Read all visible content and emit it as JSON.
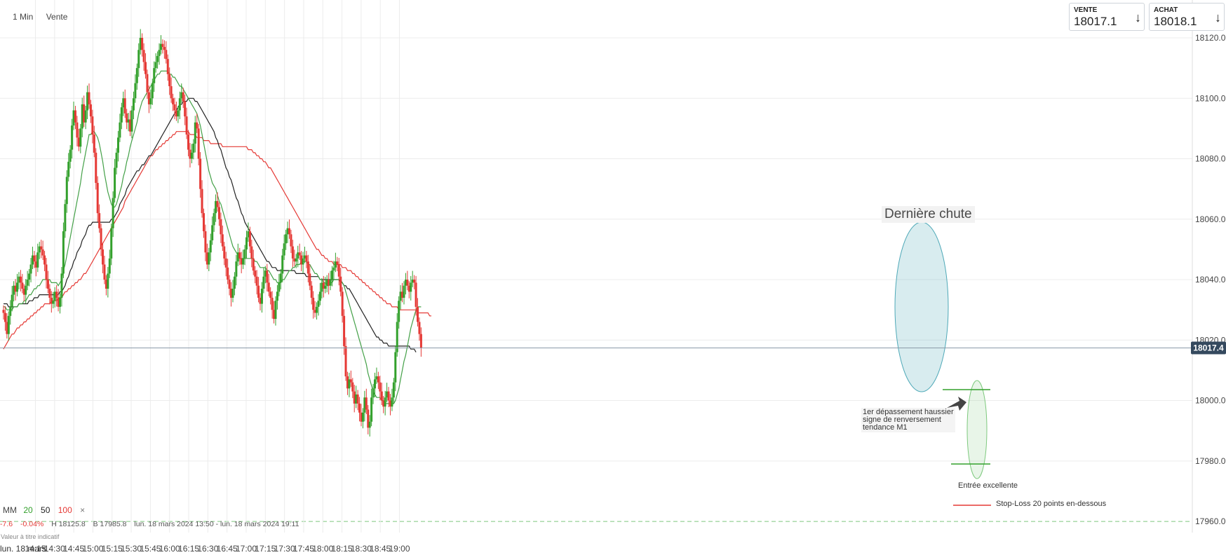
{
  "toolbar": {
    "interval": "1 Min",
    "mode": "Vente"
  },
  "quotes": {
    "sell": {
      "label": "VENTE",
      "value": "18017.1",
      "arrow": "↓"
    },
    "buy": {
      "label": "ACHAT",
      "value": "18018.1",
      "arrow": "↓"
    }
  },
  "legend": {
    "title": "MM",
    "periods": [
      "20",
      "50",
      "100"
    ],
    "close": "×"
  },
  "infobar": {
    "change": "-7.6",
    "change_pct": "-0.04%",
    "high": "H 18125.8",
    "low": "B 17985.8",
    "range": "lun. 18 mars 2024 13:50 - lun. 18 mars 2024 19:11",
    "indicative": "Valeur à titre indicatif",
    "date": "lun. 18 mars"
  },
  "annotations": {
    "title": "Dernière chute",
    "note": [
      "1er dépassement haussier",
      "signe de renversement",
      "tendance M1"
    ],
    "entry": "Entrée excellente",
    "stop_loss": "Stop-Loss 20 points en-dessous"
  },
  "colors": {
    "up": "#33a02c",
    "down": "#e53935",
    "ma20": "#43a047",
    "ma50": "#222222",
    "ma100": "#e53935",
    "last_price": "#34495e"
  },
  "chart_data": {
    "type": "candlestick",
    "y_ticks": [
      "18120.0",
      "18100.0",
      "18080.0",
      "18060.0",
      "18040.0",
      "18020.0",
      "18000.0",
      "17980.0",
      "17960.0"
    ],
    "x_ticks": [
      "14:15",
      "14:30",
      "14:45",
      "15:00",
      "15:15",
      "15:30",
      "15:45",
      "16:00",
      "16:15",
      "16:30",
      "16:45",
      "17:00",
      "17:15",
      "17:30",
      "17:45",
      "18:00",
      "18:15",
      "18:30",
      "18:45",
      "19:00"
    ],
    "ylim": [
      17955,
      18125
    ],
    "x_range": [
      "13:50",
      "19:11"
    ],
    "last_price": "18017.4",
    "stop_level": 17979,
    "close": [
      18029,
      18026,
      18022,
      18028,
      18031,
      18035,
      18038,
      18036,
      18039,
      18041,
      18039,
      18037,
      18035,
      18038,
      18040,
      18042,
      18045,
      18048,
      18046,
      18044,
      18049,
      18051,
      18050,
      18048,
      18045,
      18040,
      18037,
      18034,
      18032,
      18033,
      18036,
      18034,
      18031,
      18034,
      18042,
      18056,
      18065,
      18074,
      18079,
      18083,
      18091,
      18096,
      18092,
      18087,
      18084,
      18090,
      18098,
      18092,
      18096,
      18102,
      18098,
      18094,
      18088,
      18082,
      18072,
      18062,
      18057,
      18050,
      18045,
      18040,
      18037,
      18042,
      18047,
      18057,
      18067,
      18077,
      18082,
      18087,
      18092,
      18097,
      18100,
      18095,
      18092,
      18093,
      18089,
      18096,
      18100,
      18105,
      18110,
      18116,
      18120,
      18116,
      18112,
      18108,
      18102,
      18098,
      18100,
      18105,
      18110,
      18112,
      18114,
      18116,
      18118,
      18117,
      18116,
      18113,
      18108,
      18104,
      18100,
      18098,
      18096,
      18094,
      18096,
      18100,
      18102,
      18099,
      18094,
      18088,
      18083,
      18080,
      18082,
      18085,
      18092,
      18090,
      18080,
      18070,
      18062,
      18056,
      18049,
      18045,
      18049,
      18053,
      18058,
      18062,
      18066,
      18064,
      18060,
      18055,
      18051,
      18047,
      18044,
      18040,
      18037,
      18034,
      18037,
      18041,
      18046,
      18049,
      18047,
      18045,
      18047,
      18050,
      18054,
      18056,
      18051,
      18047,
      18043,
      18041,
      18038,
      18034,
      18032,
      18037,
      18041,
      18043,
      18039,
      18036,
      18034,
      18030,
      18027,
      18033,
      18036,
      18039,
      18042,
      18048,
      18052,
      18055,
      18057,
      18055,
      18051,
      18047,
      18046,
      18047,
      18049,
      18048,
      18045,
      18047,
      18048,
      18046,
      18042,
      18038,
      18034,
      18030,
      18029,
      18031,
      18033,
      18036,
      18039,
      18037,
      18038,
      18040,
      18038,
      18040,
      18043,
      18044,
      18046,
      18045,
      18041,
      18036,
      18028,
      18018,
      18008,
      18004,
      18007,
      18006,
      18003,
      17999,
      18002,
      17999,
      17996,
      17993,
      17996,
      18001,
      17997,
      17991,
      17993,
      18001,
      18004,
      18007,
      18008,
      18006,
      18003,
      18000,
      17998,
      18001,
      18003,
      18000,
      17998,
      18001,
      18006,
      18016,
      18026,
      18033,
      18036,
      18034,
      18038,
      18040,
      18038,
      18036,
      18039,
      18040,
      18039,
      18031,
      18026,
      18022,
      18017.4
    ],
    "ma20": [
      18031,
      18031,
      18030,
      18030,
      18030,
      18030,
      18031,
      18031,
      18031,
      18032,
      18032,
      18032,
      18033,
      18033,
      18034,
      18035,
      18035,
      18036,
      18037,
      18037,
      18038,
      18038,
      18039,
      18040,
      18040,
      18040,
      18040,
      18040,
      18039,
      18039,
      18039,
      18039,
      18038,
      18039,
      18040,
      18043,
      18045,
      18048,
      18051,
      18054,
      18057,
      18060,
      18063,
      18066,
      18069,
      18072,
      18076,
      18079,
      18082,
      18085,
      18088,
      18088,
      18089,
      18089,
      18088,
      18087,
      18085,
      18082,
      18079,
      18075,
      18072,
      18069,
      18067,
      18065,
      18064,
      18064,
      18065,
      18067,
      18069,
      18071,
      18074,
      18076,
      18079,
      18081,
      18084,
      18086,
      18088,
      18090,
      18092,
      18095,
      18097,
      18099,
      18100,
      18101,
      18102,
      18103,
      18104,
      18105,
      18106,
      18107,
      18108,
      18108,
      18109,
      18109,
      18109,
      18109,
      18109,
      18108,
      18108,
      18107,
      18107,
      18106,
      18105,
      18104,
      18104,
      18103,
      18102,
      18101,
      18100,
      18099,
      18098,
      18097,
      18096,
      18095,
      18093,
      18091,
      18088,
      18085,
      18082,
      18079,
      18076,
      18074,
      18072,
      18071,
      18070,
      18068,
      18066,
      18065,
      18063,
      18061,
      18059,
      18057,
      18055,
      18053,
      18051,
      18050,
      18049,
      18048,
      18047,
      18047,
      18047,
      18047,
      18047,
      18047,
      18047,
      18047,
      18047,
      18046,
      18046,
      18045,
      18044,
      18044,
      18044,
      18044,
      18043,
      18043,
      18042,
      18041,
      18040,
      18040,
      18039,
      18039,
      18039,
      18040,
      18040,
      18041,
      18042,
      18043,
      18043,
      18044,
      18044,
      18045,
      18045,
      18045,
      18046,
      18046,
      18046,
      18046,
      18045,
      18045,
      18044,
      18043,
      18042,
      18042,
      18041,
      18040,
      18040,
      18039,
      18039,
      18038,
      18038,
      18039,
      18039,
      18040,
      18040,
      18040,
      18040,
      18040,
      18039,
      18038,
      18036,
      18034,
      18032,
      18030,
      18028,
      18026,
      18024,
      18022,
      18020,
      18018,
      18016,
      18014,
      18012,
      18009,
      18007,
      18005,
      18003,
      18002,
      18001,
      18001,
      18001,
      18000,
      18000,
      17999,
      17999,
      17999,
      17999,
      17999,
      17999,
      18000,
      18002,
      18004,
      18007,
      18010,
      18013,
      18015,
      18018,
      18021,
      18024,
      18026,
      18028,
      18030,
      18031,
      18031,
      18031
    ],
    "ma50": [
      18032,
      18032,
      18032,
      18031,
      18031,
      18031,
      18031,
      18031,
      18031,
      18032,
      18032,
      18032,
      18032,
      18032,
      18032,
      18033,
      18033,
      18033,
      18034,
      18034,
      18034,
      18035,
      18035,
      18035,
      18035,
      18035,
      18035,
      18035,
      18035,
      18035,
      18035,
      18035,
      18035,
      18036,
      18036,
      18037,
      18038,
      18040,
      18041,
      18043,
      18044,
      18046,
      18047,
      18049,
      18050,
      18051,
      18053,
      18054,
      18055,
      18057,
      18058,
      18058,
      18059,
      18059,
      18059,
      18059,
      18059,
      18059,
      18059,
      18059,
      18059,
      18059,
      18059,
      18060,
      18060,
      18061,
      18062,
      18063,
      18065,
      18066,
      18067,
      18068,
      18070,
      18071,
      18072,
      18073,
      18074,
      18075,
      18076,
      18076,
      18077,
      18078,
      18078,
      18079,
      18080,
      18081,
      18081,
      18082,
      18083,
      18084,
      18085,
      18086,
      18087,
      18088,
      18089,
      18090,
      18091,
      18092,
      18093,
      18094,
      18095,
      18096,
      18097,
      18098,
      18098,
      18099,
      18099,
      18099,
      18100,
      18100,
      18100,
      18100,
      18099,
      18099,
      18098,
      18097,
      18096,
      18095,
      18094,
      18093,
      18092,
      18091,
      18090,
      18089,
      18087,
      18086,
      18084,
      18083,
      18081,
      18079,
      18077,
      18076,
      18074,
      18073,
      18071,
      18069,
      18067,
      18066,
      18064,
      18062,
      18061,
      18059,
      18058,
      18057,
      18056,
      18055,
      18054,
      18053,
      18052,
      18051,
      18050,
      18049,
      18048,
      18047,
      18046,
      18046,
      18045,
      18044,
      18044,
      18044,
      18043,
      18043,
      18043,
      18043,
      18043,
      18043,
      18043,
      18043,
      18043,
      18043,
      18043,
      18042,
      18042,
      18042,
      18042,
      18042,
      18042,
      18041,
      18041,
      18041,
      18041,
      18041,
      18041,
      18041,
      18041,
      18040,
      18040,
      18040,
      18040,
      18040,
      18040,
      18040,
      18040,
      18040,
      18040,
      18040,
      18040,
      18039,
      18039,
      18038,
      18038,
      18037,
      18037,
      18036,
      18035,
      18034,
      18033,
      18032,
      18031,
      18030,
      18029,
      18028,
      18027,
      18026,
      18025,
      18024,
      18023,
      18022,
      18021,
      18021,
      18020,
      18020,
      18019,
      18019,
      18019,
      18018,
      18018,
      18018,
      18018,
      18018,
      18018,
      18018,
      18018,
      18018,
      18018,
      18018,
      18018,
      18018,
      18017,
      18017,
      18017,
      18016
    ],
    "ma100": [
      18017,
      18018,
      18019,
      18020,
      18021,
      18022,
      18022,
      18023,
      18024,
      18024,
      18025,
      18025,
      18026,
      18026,
      18027,
      18027,
      18028,
      18028,
      18029,
      18029,
      18030,
      18030,
      18031,
      18031,
      18032,
      18032,
      18032,
      18032,
      18033,
      18033,
      18033,
      18033,
      18034,
      18034,
      18034,
      18035,
      18036,
      18036,
      18037,
      18037,
      18038,
      18038,
      18039,
      18039,
      18040,
      18040,
      18041,
      18042,
      18042,
      18043,
      18044,
      18045,
      18046,
      18047,
      18048,
      18049,
      18050,
      18051,
      18052,
      18053,
      18054,
      18055,
      18056,
      18057,
      18058,
      18059,
      18060,
      18061,
      18062,
      18063,
      18064,
      18066,
      18067,
      18068,
      18069,
      18070,
      18071,
      18072,
      18073,
      18074,
      18075,
      18076,
      18077,
      18078,
      18079,
      18080,
      18081,
      18081,
      18082,
      18083,
      18083,
      18084,
      18084,
      18085,
      18085,
      18086,
      18086,
      18087,
      18087,
      18088,
      18088,
      18089,
      18089,
      18089,
      18089,
      18089,
      18089,
      18089,
      18089,
      18088,
      18088,
      18088,
      18088,
      18087,
      18087,
      18087,
      18087,
      18086,
      18086,
      18086,
      18086,
      18085,
      18085,
      18085,
      18085,
      18085,
      18085,
      18085,
      18084,
      18084,
      18084,
      18084,
      18084,
      18084,
      18084,
      18084,
      18084,
      18084,
      18084,
      18084,
      18084,
      18084,
      18084,
      18083,
      18083,
      18083,
      18082,
      18082,
      18081,
      18081,
      18080,
      18080,
      18079,
      18079,
      18078,
      18077,
      18077,
      18076,
      18075,
      18074,
      18073,
      18072,
      18071,
      18070,
      18069,
      18068,
      18067,
      18066,
      18065,
      18064,
      18063,
      18062,
      18061,
      18060,
      18059,
      18058,
      18057,
      18056,
      18055,
      18054,
      18053,
      18052,
      18051,
      18050,
      18050,
      18049,
      18048,
      18048,
      18047,
      18047,
      18046,
      18046,
      18046,
      18045,
      18045,
      18045,
      18045,
      18045,
      18044,
      18044,
      18044,
      18043,
      18043,
      18043,
      18042,
      18042,
      18041,
      18041,
      18040,
      18040,
      18039,
      18039,
      18038,
      18038,
      18037,
      18037,
      18036,
      18036,
      18035,
      18035,
      18034,
      18034,
      18033,
      18033,
      18032,
      18032,
      18032,
      18031,
      18031,
      18031,
      18031,
      18030,
      18030,
      18030,
      18030,
      18030,
      18030,
      18030,
      18030,
      18030,
      18030,
      18030,
      18029,
      18029,
      18029,
      18029,
      18029,
      18029,
      18029,
      18028,
      18028
    ]
  }
}
